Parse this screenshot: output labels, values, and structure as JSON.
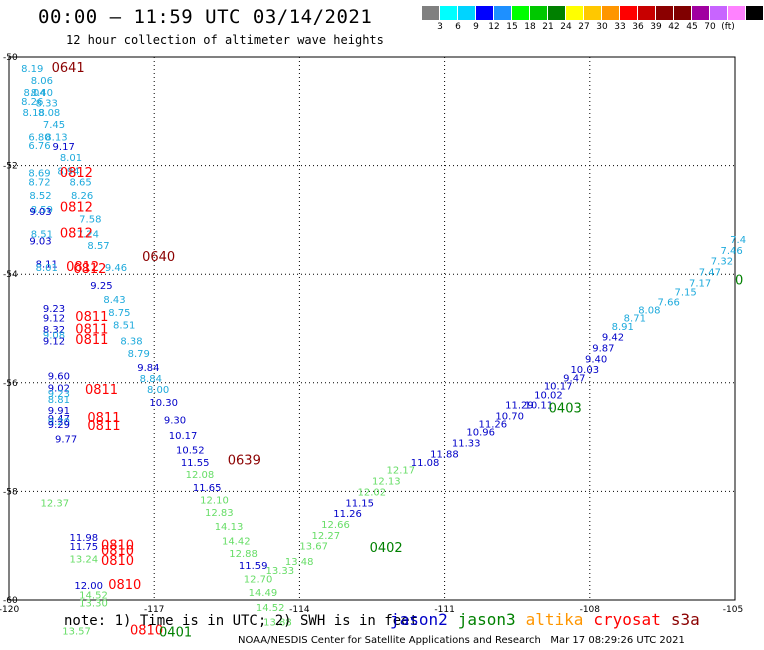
{
  "header": {
    "title": "00:00 — 11:59 UTC 03/14/2021",
    "subtitle": "12 hour collection of altimeter wave heights"
  },
  "colorbar": {
    "colors": [
      "#808080",
      "#00ffff",
      "#00d4ff",
      "#0000ff",
      "#1e90ff",
      "#00ff00",
      "#00c800",
      "#008000",
      "#ffff00",
      "#ffc800",
      "#ff9600",
      "#ff0000",
      "#c80000",
      "#8b0000",
      "#800000",
      "#a000a0",
      "#c864ff",
      "#ff82ff",
      "#000000"
    ],
    "labels": [
      "3",
      "6",
      "9",
      "12",
      "15",
      "18",
      "21",
      "24",
      "27",
      "30",
      "33",
      "36",
      "39",
      "42",
      "45",
      "70",
      "(ft)"
    ]
  },
  "map_data": {
    "lon_range": [
      -120,
      -105
    ],
    "lat_range": [
      -60,
      -50
    ],
    "x_ticks": [
      "-120",
      "-117",
      "-114",
      "-111",
      "-108",
      "-105"
    ],
    "y_ticks": [
      "-50",
      "-52",
      "-54",
      "-56",
      "-58",
      "-60"
    ],
    "grid": "dotted",
    "satellite_colors": {
      "jason2": "#0000c8",
      "jason3": "#008000",
      "altika": "#ff9600",
      "cryosat": "#ff0000",
      "s3a": "#8b0000",
      "light_blue": "#1eaadc",
      "light_green": "#66dd66"
    },
    "labels": [
      {
        "lon": -119.75,
        "lat": -50.2,
        "text": "8.19",
        "color": "#1eaadc"
      },
      {
        "lon": -119.55,
        "lat": -50.42,
        "text": "8.06",
        "color": "#1eaadc"
      },
      {
        "lon": -119.7,
        "lat": -50.64,
        "text": "8.04",
        "color": "#1eaadc"
      },
      {
        "lon": -119.55,
        "lat": -50.64,
        "text": "8.40",
        "color": "#1eaadc"
      },
      {
        "lon": -119.75,
        "lat": -50.81,
        "text": "8.26",
        "color": "#1eaadc"
      },
      {
        "lon": -119.45,
        "lat": -50.84,
        "text": "8.33",
        "color": "#1eaadc"
      },
      {
        "lon": -119.72,
        "lat": -51.01,
        "text": "8.18",
        "color": "#1eaadc"
      },
      {
        "lon": -119.4,
        "lat": -51.01,
        "text": "8.08",
        "color": "#1eaadc"
      },
      {
        "lon": -119.3,
        "lat": -51.23,
        "text": "7.45",
        "color": "#1eaadc"
      },
      {
        "lon": -119.6,
        "lat": -51.46,
        "text": "6.80",
        "color": "#1eaadc"
      },
      {
        "lon": -119.25,
        "lat": -51.46,
        "text": "8.13",
        "color": "#1eaadc"
      },
      {
        "lon": -119.6,
        "lat": -51.62,
        "text": "6.76",
        "color": "#1eaadc"
      },
      {
        "lon": -119.1,
        "lat": -51.64,
        "text": "9.17",
        "color": "#0000c8"
      },
      {
        "lon": -118.95,
        "lat": -51.84,
        "text": "8.01",
        "color": "#1eaadc"
      },
      {
        "lon": -119.6,
        "lat": -52.13,
        "text": "8.69",
        "color": "#1eaadc"
      },
      {
        "lon": -119.0,
        "lat": -52.09,
        "text": "8.94",
        "color": "#1eaadc"
      },
      {
        "lon": -119.6,
        "lat": -52.29,
        "text": "8.72",
        "color": "#1eaadc"
      },
      {
        "lon": -118.75,
        "lat": -52.29,
        "text": "8.65",
        "color": "#1eaadc"
      },
      {
        "lon": -119.58,
        "lat": -52.54,
        "text": "8.52",
        "color": "#1eaadc"
      },
      {
        "lon": -118.72,
        "lat": -52.54,
        "text": "8.26",
        "color": "#1eaadc"
      },
      {
        "lon": -119.55,
        "lat": -52.8,
        "text": "8.59",
        "color": "#1eaadc"
      },
      {
        "lon": -119.58,
        "lat": -52.84,
        "text": "9.03",
        "color": "#0000c8"
      },
      {
        "lon": -118.55,
        "lat": -52.97,
        "text": "7.58",
        "color": "#1eaadc"
      },
      {
        "lon": -119.55,
        "lat": -53.25,
        "text": "8.51",
        "color": "#1eaadc"
      },
      {
        "lon": -118.6,
        "lat": -53.25,
        "text": "7.24",
        "color": "#1eaadc"
      },
      {
        "lon": -119.58,
        "lat": -53.38,
        "text": "9.03",
        "color": "#0000c8"
      },
      {
        "lon": -118.38,
        "lat": -53.46,
        "text": "8.57",
        "color": "#1eaadc"
      },
      {
        "lon": -119.45,
        "lat": -53.8,
        "text": "8.11",
        "color": "#0000c8"
      },
      {
        "lon": -119.45,
        "lat": -53.87,
        "text": "8.01",
        "color": "#1eaadc"
      },
      {
        "lon": -118.02,
        "lat": -53.87,
        "text": "9.46",
        "color": "#1eaadc"
      },
      {
        "lon": -118.32,
        "lat": -54.2,
        "text": "9.25",
        "color": "#0000c8"
      },
      {
        "lon": -118.05,
        "lat": -54.46,
        "text": "8.43",
        "color": "#1eaadc"
      },
      {
        "lon": -119.3,
        "lat": -54.62,
        "text": "9.23",
        "color": "#0000c8"
      },
      {
        "lon": -117.95,
        "lat": -54.7,
        "text": "8.75",
        "color": "#1eaadc"
      },
      {
        "lon": -119.3,
        "lat": -54.8,
        "text": "9.12",
        "color": "#0000c8"
      },
      {
        "lon": -117.85,
        "lat": -54.93,
        "text": "8.51",
        "color": "#1eaadc"
      },
      {
        "lon": -119.3,
        "lat": -55.01,
        "text": "8.32",
        "color": "#0000c8"
      },
      {
        "lon": -119.3,
        "lat": -55.11,
        "text": "9.08",
        "color": "#1eaadc"
      },
      {
        "lon": -119.3,
        "lat": -55.22,
        "text": "9.12",
        "color": "#0000c8"
      },
      {
        "lon": -117.7,
        "lat": -55.22,
        "text": "8.38",
        "color": "#1eaadc"
      },
      {
        "lon": -117.55,
        "lat": -55.45,
        "text": "8.79",
        "color": "#1eaadc"
      },
      {
        "lon": -117.35,
        "lat": -55.71,
        "text": "9.84",
        "color": "#0000c8"
      },
      {
        "lon": -117.3,
        "lat": -55.91,
        "text": "8.84",
        "color": "#1eaadc"
      },
      {
        "lon": -119.2,
        "lat": -55.87,
        "text": "9.60",
        "color": "#0000c8"
      },
      {
        "lon": -119.2,
        "lat": -56.09,
        "text": "9.02",
        "color": "#0000c8"
      },
      {
        "lon": -119.2,
        "lat": -56.19,
        "text": "9.23",
        "color": "#1eaadc"
      },
      {
        "lon": -117.15,
        "lat": -56.11,
        "text": "8.00",
        "color": "#1eaadc"
      },
      {
        "lon": -119.2,
        "lat": -56.3,
        "text": "8.81",
        "color": "#1eaadc"
      },
      {
        "lon": -117.1,
        "lat": -56.35,
        "text": "10.30",
        "color": "#0000c8"
      },
      {
        "lon": -119.2,
        "lat": -56.5,
        "text": "9.91",
        "color": "#0000c8"
      },
      {
        "lon": -119.2,
        "lat": -56.65,
        "text": "9.47",
        "color": "#0000c8"
      },
      {
        "lon": -119.2,
        "lat": -56.7,
        "text": "9.20",
        "color": "#1eaadc"
      },
      {
        "lon": -119.2,
        "lat": -56.76,
        "text": "9.29",
        "color": "#0000c8"
      },
      {
        "lon": -116.8,
        "lat": -56.68,
        "text": "9.30",
        "color": "#0000c8"
      },
      {
        "lon": -119.05,
        "lat": -57.03,
        "text": "9.77",
        "color": "#0000c8"
      },
      {
        "lon": -116.7,
        "lat": -56.96,
        "text": "10.17",
        "color": "#0000c8"
      },
      {
        "lon": -116.55,
        "lat": -57.23,
        "text": "10.52",
        "color": "#0000c8"
      },
      {
        "lon": -116.45,
        "lat": -57.46,
        "text": "11.55",
        "color": "#0000c8"
      },
      {
        "lon": -116.35,
        "lat": -57.68,
        "text": "12.08",
        "color": "#66dd66"
      },
      {
        "lon": -116.2,
        "lat": -57.92,
        "text": "11.65",
        "color": "#0000c8"
      },
      {
        "lon": -116.05,
        "lat": -58.15,
        "text": "12.10",
        "color": "#66dd66"
      },
      {
        "lon": -119.35,
        "lat": -58.2,
        "text": "12.37",
        "color": "#66dd66"
      },
      {
        "lon": -115.95,
        "lat": -58.38,
        "text": "12.83",
        "color": "#66dd66"
      },
      {
        "lon": -115.75,
        "lat": -58.64,
        "text": "14.13",
        "color": "#66dd66"
      },
      {
        "lon": -118.75,
        "lat": -58.84,
        "text": "11.98",
        "color": "#0000c8"
      },
      {
        "lon": -115.6,
        "lat": -58.9,
        "text": "14.42",
        "color": "#66dd66"
      },
      {
        "lon": -118.75,
        "lat": -59.01,
        "text": "11.75",
        "color": "#0000c8"
      },
      {
        "lon": -115.45,
        "lat": -59.13,
        "text": "12.88",
        "color": "#66dd66"
      },
      {
        "lon": -118.75,
        "lat": -59.24,
        "text": "13.24",
        "color": "#66dd66"
      },
      {
        "lon": -115.25,
        "lat": -59.36,
        "text": "11.59",
        "color": "#0000c8"
      },
      {
        "lon": -118.65,
        "lat": -59.72,
        "text": "12.00",
        "color": "#0000c8"
      },
      {
        "lon": -118.55,
        "lat": -59.9,
        "text": "14.52",
        "color": "#66dd66"
      },
      {
        "lon": -118.55,
        "lat": -60.05,
        "text": "13.30",
        "color": "#66dd66"
      },
      {
        "lon": -115.15,
        "lat": -59.6,
        "text": "12.70",
        "color": "#66dd66"
      },
      {
        "lon": -115.05,
        "lat": -59.85,
        "text": "14.49",
        "color": "#66dd66"
      },
      {
        "lon": -114.9,
        "lat": -60.13,
        "text": "14.52",
        "color": "#66dd66"
      },
      {
        "lon": -114.75,
        "lat": -60.4,
        "text": "13.88",
        "color": "#66dd66"
      },
      {
        "lon": -118.9,
        "lat": -60.56,
        "text": "13.57",
        "color": "#66dd66"
      },
      {
        "lon": -114.3,
        "lat": -59.28,
        "text": "13.48",
        "color": "#66dd66"
      },
      {
        "lon": -114.7,
        "lat": -59.45,
        "text": "13.33",
        "color": "#66dd66"
      },
      {
        "lon": -114.0,
        "lat": -59.0,
        "text": "13.67",
        "color": "#66dd66"
      },
      {
        "lon": -113.75,
        "lat": -58.8,
        "text": "12.27",
        "color": "#66dd66"
      },
      {
        "lon": -113.55,
        "lat": -58.6,
        "text": "12.66",
        "color": "#66dd66"
      },
      {
        "lon": -113.3,
        "lat": -58.4,
        "text": "11.26",
        "color": "#0000c8"
      },
      {
        "lon": -113.05,
        "lat": -58.2,
        "text": "11.15",
        "color": "#0000c8"
      },
      {
        "lon": -112.8,
        "lat": -58.0,
        "text": "12.02",
        "color": "#66dd66"
      },
      {
        "lon": -112.5,
        "lat": -57.8,
        "text": "12.13",
        "color": "#66dd66"
      },
      {
        "lon": -112.2,
        "lat": -57.6,
        "text": "12.17",
        "color": "#66dd66"
      },
      {
        "lon": -111.7,
        "lat": -57.46,
        "text": "11.08",
        "color": "#0000c8"
      },
      {
        "lon": -111.3,
        "lat": -57.3,
        "text": "11.88",
        "color": "#0000c8"
      },
      {
        "lon": -110.85,
        "lat": -57.1,
        "text": "11.33",
        "color": "#0000c8"
      },
      {
        "lon": -110.55,
        "lat": -56.9,
        "text": "10.96",
        "color": "#0000c8"
      },
      {
        "lon": -110.3,
        "lat": -56.75,
        "text": "11.26",
        "color": "#0000c8"
      },
      {
        "lon": -109.95,
        "lat": -56.6,
        "text": "10.70",
        "color": "#0000c8"
      },
      {
        "lon": -109.75,
        "lat": -56.4,
        "text": "11.29",
        "color": "#0000c8"
      },
      {
        "lon": -109.35,
        "lat": -56.4,
        "text": "10.11",
        "color": "#0000c8"
      },
      {
        "lon": -109.15,
        "lat": -56.22,
        "text": "10.02",
        "color": "#0000c8"
      },
      {
        "lon": -108.95,
        "lat": -56.05,
        "text": "10.17",
        "color": "#0000c8"
      },
      {
        "lon": -108.55,
        "lat": -55.9,
        "text": "9.47",
        "color": "#0000c8"
      },
      {
        "lon": -108.4,
        "lat": -55.75,
        "text": "10.03",
        "color": "#0000c8"
      },
      {
        "lon": -108.1,
        "lat": -55.55,
        "text": "9.40",
        "color": "#0000c8"
      },
      {
        "lon": -107.95,
        "lat": -55.35,
        "text": "9.87",
        "color": "#0000c8"
      },
      {
        "lon": -107.75,
        "lat": -55.15,
        "text": "9.42",
        "color": "#0000c8"
      },
      {
        "lon": -107.55,
        "lat": -54.95,
        "text": "8.91",
        "color": "#1eaadc"
      },
      {
        "lon": -107.3,
        "lat": -54.8,
        "text": "8.71",
        "color": "#1eaadc"
      },
      {
        "lon": -107.0,
        "lat": -54.65,
        "text": "8.08",
        "color": "#1eaadc"
      },
      {
        "lon": -106.6,
        "lat": -54.5,
        "text": "7.66",
        "color": "#1eaadc"
      },
      {
        "lon": -106.25,
        "lat": -54.32,
        "text": "7.15",
        "color": "#1eaadc"
      },
      {
        "lon": -105.95,
        "lat": -54.15,
        "text": "7.17",
        "color": "#1eaadc"
      },
      {
        "lon": -105.75,
        "lat": -53.95,
        "text": "7.47",
        "color": "#1eaadc"
      },
      {
        "lon": -105.5,
        "lat": -53.75,
        "text": "7.32",
        "color": "#1eaadc"
      },
      {
        "lon": -105.3,
        "lat": -53.55,
        "text": "7.46",
        "color": "#1eaadc"
      },
      {
        "lon": -105.1,
        "lat": -53.35,
        "text": "7.4",
        "color": "#1eaadc"
      },
      {
        "lon": -119.12,
        "lat": -50.2,
        "text": "0641",
        "color": "#8b0000",
        "big": true
      },
      {
        "lon": -118.95,
        "lat": -52.14,
        "text": "0812",
        "color": "#ff0000",
        "big": true
      },
      {
        "lon": -118.95,
        "lat": -52.77,
        "text": "0812",
        "color": "#ff0000",
        "big": true
      },
      {
        "lon": -118.95,
        "lat": -53.25,
        "text": "0812",
        "color": "#ff0000",
        "big": true
      },
      {
        "lon": -118.82,
        "lat": -53.87,
        "text": "0812",
        "color": "#ff0000",
        "big": true
      },
      {
        "lon": -118.67,
        "lat": -53.9,
        "text": "0812",
        "color": "#ff0000",
        "big": true
      },
      {
        "lon": -117.25,
        "lat": -53.68,
        "text": "0640",
        "color": "#8b0000",
        "big": true
      },
      {
        "lon": -118.63,
        "lat": -54.79,
        "text": "0811",
        "color": "#ff0000",
        "big": true
      },
      {
        "lon": -118.63,
        "lat": -55.02,
        "text": "0811",
        "color": "#ff0000",
        "big": true
      },
      {
        "lon": -118.63,
        "lat": -55.21,
        "text": "0811",
        "color": "#ff0000",
        "big": true
      },
      {
        "lon": -118.43,
        "lat": -56.13,
        "text": "0811",
        "color": "#ff0000",
        "big": true
      },
      {
        "lon": -118.38,
        "lat": -56.65,
        "text": "0811",
        "color": "#ff0000",
        "big": true
      },
      {
        "lon": -118.38,
        "lat": -56.8,
        "text": "0811",
        "color": "#ff0000",
        "big": true
      },
      {
        "lon": -115.48,
        "lat": -57.43,
        "text": "0639",
        "color": "#8b0000",
        "big": true
      },
      {
        "lon": -118.1,
        "lat": -59.0,
        "text": "0810",
        "color": "#ff0000",
        "big": true
      },
      {
        "lon": -118.1,
        "lat": -59.1,
        "text": "0810",
        "color": "#ff0000",
        "big": true
      },
      {
        "lon": -118.1,
        "lat": -59.28,
        "text": "0810",
        "color": "#ff0000",
        "big": true
      },
      {
        "lon": -117.95,
        "lat": -59.72,
        "text": "0810",
        "color": "#ff0000",
        "big": true
      },
      {
        "lon": -117.5,
        "lat": -60.56,
        "text": "0810",
        "color": "#ff0000",
        "big": true
      },
      {
        "lon": -112.55,
        "lat": -59.04,
        "text": "0402",
        "color": "#008000",
        "big": true
      },
      {
        "lon": -108.85,
        "lat": -56.47,
        "text": "0403",
        "color": "#008000",
        "big": true
      },
      {
        "lon": -105.0,
        "lat": -54.12,
        "text": "0",
        "color": "#008000",
        "big": true
      },
      {
        "lon": -116.9,
        "lat": -60.6,
        "text": "0401",
        "color": "#008000",
        "big": true
      }
    ]
  },
  "note": "note: 1) Time is in UTC; 2) SWH is in feet",
  "legend": [
    {
      "name": "jason2",
      "color": "#0000c8"
    },
    {
      "name": "jason3",
      "color": "#008000"
    },
    {
      "name": "altika",
      "color": "#ff9600"
    },
    {
      "name": "cryosat",
      "color": "#ff0000"
    },
    {
      "name": "s3a",
      "color": "#8b0000"
    }
  ],
  "footer": "NOAA/NESDIS Center for Satellite Applications and Research   Mar 17 08:29:26 UTC 2021"
}
